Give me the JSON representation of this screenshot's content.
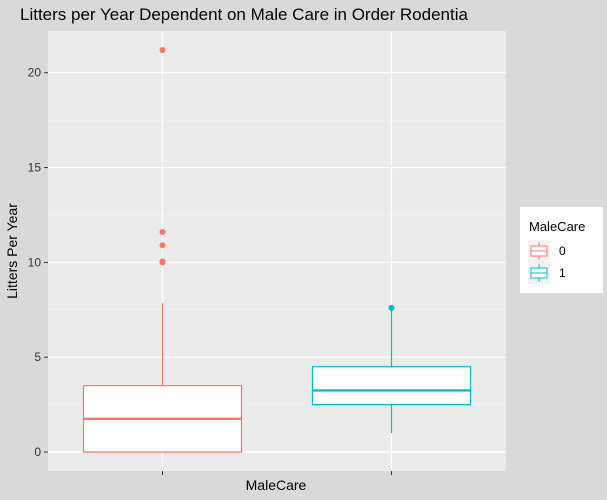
{
  "chart_data": {
    "type": "boxplot",
    "title": "Litters per Year Dependent on Male Care in Order Rodentia",
    "xlabel": "MaleCare",
    "ylabel": "Litters Per Year",
    "ylim": [
      -1,
      22.2
    ],
    "yticks": [
      0,
      5,
      10,
      15,
      20
    ],
    "grid": true,
    "legend": {
      "title": "MaleCare",
      "placement": "right"
    },
    "series": [
      {
        "name": "0",
        "color": "#f8766d",
        "whisker_low": 0,
        "q1": 0,
        "median": 1.75,
        "q3": 3.5,
        "whisker_high": 7.85,
        "outliers": [
          10,
          10.05,
          10.9,
          11.6,
          21.2
        ]
      },
      {
        "name": "1",
        "color": "#00bfc4",
        "whisker_low": 1.0,
        "q1": 2.5,
        "median": 3.25,
        "q3": 4.5,
        "whisker_high": 7.6,
        "outliers": [
          7.6
        ]
      }
    ]
  }
}
